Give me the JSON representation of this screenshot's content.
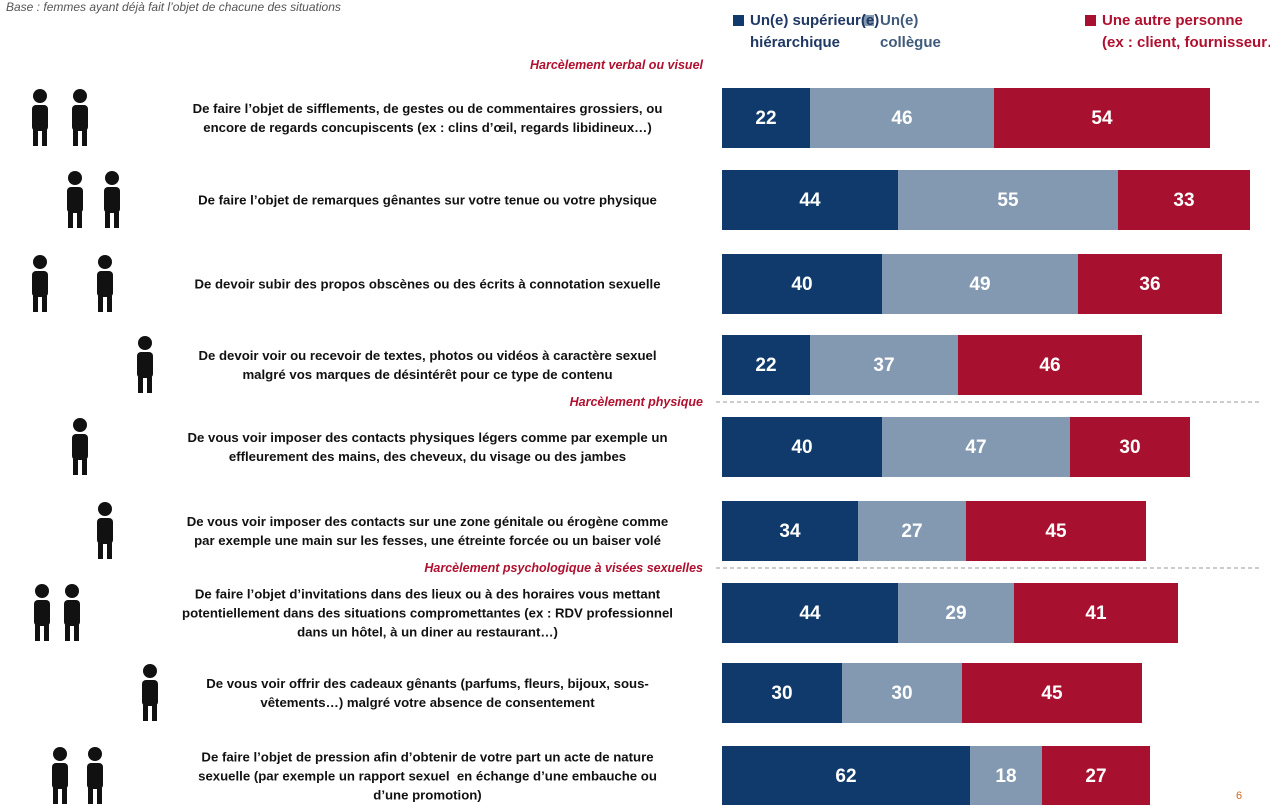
{
  "chart_data": {
    "type": "bar",
    "orientation": "horizontal",
    "stacked": true,
    "subtitle": "Base : femmes ayant déjà fait l’objet de chacune des situations",
    "annotations": [
      "Harcèlement verbal ou visuel",
      "Harcèlement physique",
      "Harcèlement psychologique à visées sexuelles"
    ],
    "page_number": "6",
    "categories": [
      "De faire l’objet de sifflements, de gestes ou de commentaires grossiers, ou\nencore de regards concupiscents (ex : clins d’œil, regards libidineux…)",
      "De faire l’objet de remarques gênantes sur votre tenue ou votre physique",
      "De devoir subir des propos obscènes ou des écrits à connotation sexuelle",
      "De devoir voir ou recevoir de textes, photos ou vidéos à caractère sexuel\nmalgré vos marques de désintérêt pour ce type de contenu",
      "De vous voir imposer des contacts physiques légers comme par exemple un\neffleurement des mains, des cheveux, du visage ou des jambes",
      "De vous voir imposer des contacts sur une zone génitale ou érogène comme\npar exemple une main sur les fesses, une étreinte forcée ou un baiser volé",
      "De faire l’objet d’invitations dans des lieux ou à des horaires vous mettant\npotentiellement dans des situations compromettantes (ex : RDV professionnel\ndans un hôtel, à un diner au restaurant…)",
      "De vous voir offrir des cadeaux gênants (parfums, fleurs, bijoux, sous-\nvêtements…) malgré votre absence de consentement",
      "De faire l’objet de pression afin d’obtenir de votre part un acte de nature\nsexuelle (par exemple un rapport sexuel  en échange d’une embauche ou\nd’une promotion)"
    ],
    "series": [
      {
        "name": "Un(e) supérieur(e)\nhiérarchique",
        "color": "#0f3a6b",
        "values": [
          22,
          44,
          40,
          22,
          40,
          34,
          44,
          30,
          62
        ]
      },
      {
        "name": "Un(e)\ncollègue",
        "color": "#8399b1",
        "values": [
          46,
          55,
          49,
          37,
          47,
          27,
          29,
          30,
          18
        ]
      },
      {
        "name": "Une autre personne\n(ex : client, fournisseur…)",
        "color": "#a8102f",
        "values": [
          54,
          33,
          36,
          46,
          30,
          45,
          41,
          45,
          27
        ]
      }
    ]
  }
}
